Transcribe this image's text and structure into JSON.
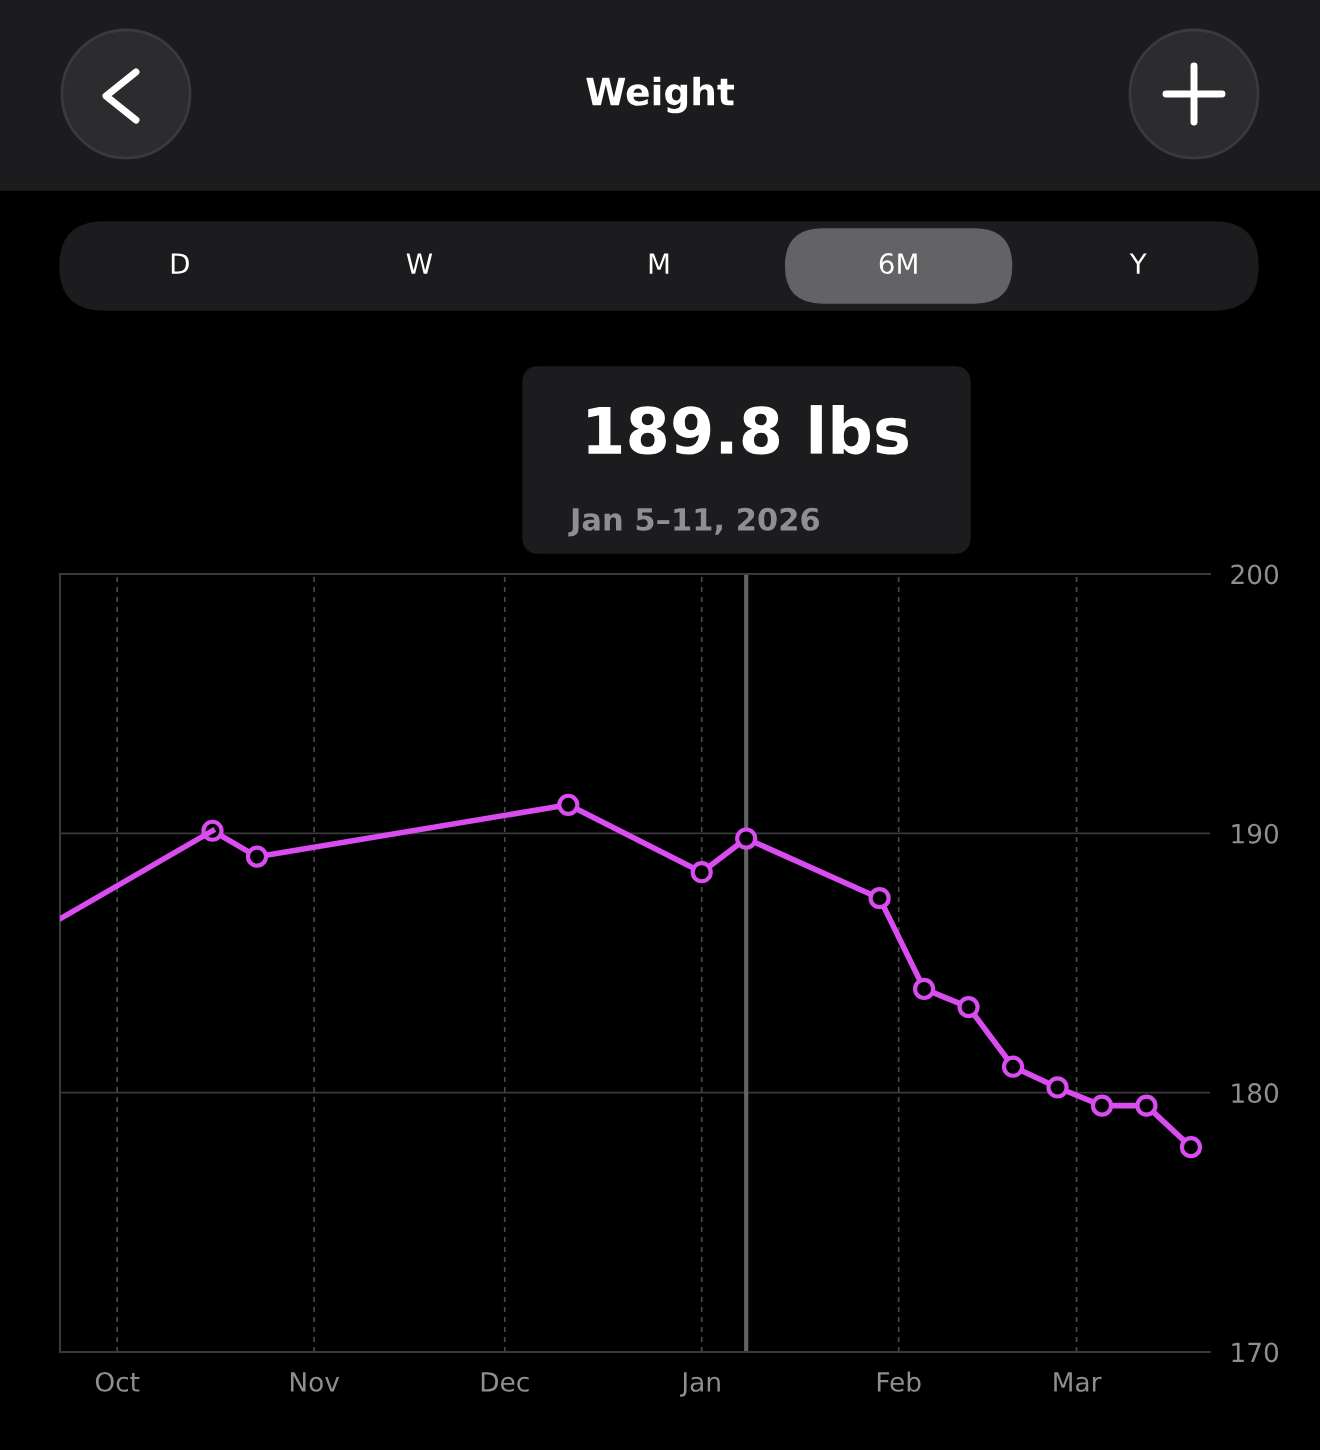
{
  "chart_data": {
    "type": "line",
    "title": "Weight",
    "annotations": [
      "D",
      "W",
      "M",
      "6M",
      "Y",
      "189.8 lbs"
    ],
    "x": [
      "2025-10-16",
      "2025-10-23",
      "2025-12-11",
      "2026-01-01",
      "2026-01-08",
      "2026-01-29",
      "2026-02-05",
      "2026-02-12",
      "2026-02-19",
      "2026-02-26",
      "2026-03-05",
      "2026-03-12",
      "2026-03-19"
    ],
    "series": [
      {
        "color": "#d94cf0",
        "values": [
          190.1,
          189.1,
          191.1,
          188.5,
          189.8,
          187.5,
          184.0,
          183.3,
          181.0,
          180.2,
          179.5,
          179.5,
          177.9
        ],
        "marker": "circle"
      },
      {
        "color": "#d94cf0",
        "x": [
          "2025-09-22",
          "2025-10-16"
        ],
        "values": [
          186.7,
          190.1
        ],
        "marker": "none"
      }
    ],
    "xlim": [
      "2025-09-22",
      "2026-03-22"
    ],
    "xticks": [
      {
        "value": "2025-10-01",
        "label": "Oct"
      },
      {
        "value": "2025-11-01",
        "label": "Nov"
      },
      {
        "value": "2025-12-01",
        "label": "Dec"
      },
      {
        "value": "2026-01-01",
        "label": "Jan"
      },
      {
        "value": "2026-02-01",
        "label": "Feb"
      },
      {
        "value": "2026-03-01",
        "label": "Mar"
      }
    ],
    "ylim": [
      170,
      200
    ],
    "yticks": [
      170,
      180,
      190,
      200
    ],
    "ref_lines": [
      {
        "axis": "x",
        "value": "2026-01-08",
        "label": "Jan 5–11, 2026",
        "color": "#636366"
      }
    ],
    "grid": true,
    "legend": false,
    "line_style": "solid"
  }
}
